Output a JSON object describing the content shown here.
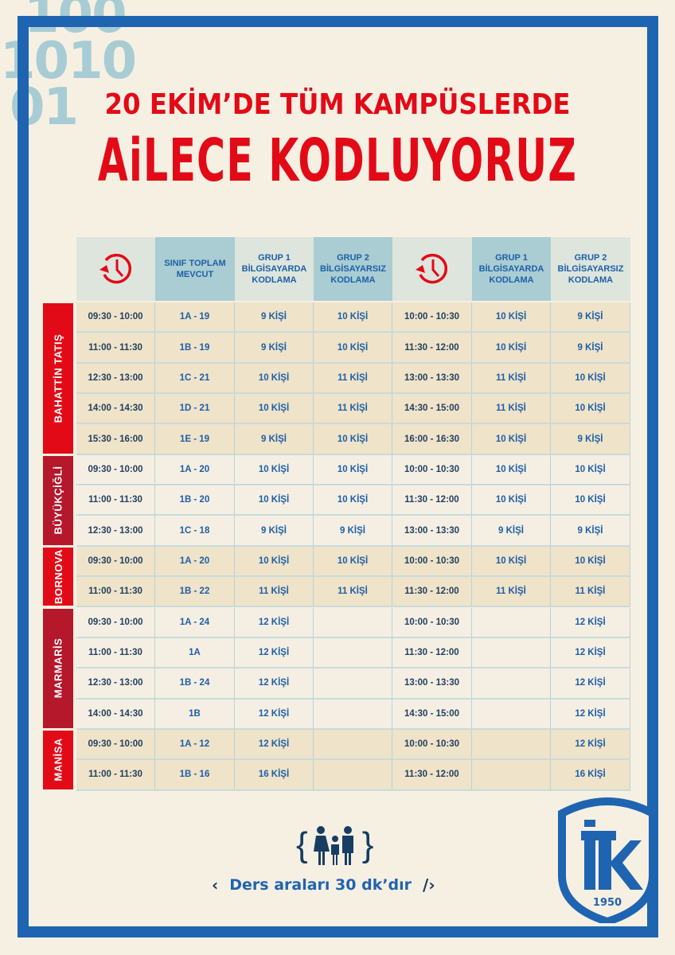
{
  "decor_binary": [
    "100",
    "1010",
    "01"
  ],
  "title_line1": "20 EKİM’DE TÜM KAMPÜSLERDE",
  "title_line2": "AiLECE  KODLUYORUZ",
  "colors": {
    "frame": "#1f64b0",
    "title": "#e30a17",
    "header_dark": "#a9cdd2",
    "header_light": "#dde5dd",
    "row_tan": "#efe3c9",
    "row_light": "#f5efe3",
    "text_blue": "#1d5fa8"
  },
  "headers": [
    "clock-icon",
    "SINIF TOPLAM MEVCUT",
    "GRUP 1 BİLGİSAYARDA KODLAMA",
    "GRUP 2 BİLGİSAYARSIZ KODLAMA",
    "clock-icon",
    "GRUP 1 BİLGİSAYARDA KODLAMA",
    "GRUP 2 BİLGİSAYARSIZ KODLAMA"
  ],
  "campuses": [
    {
      "name": "BAHATTİN TATIŞ",
      "rows": [
        [
          "09:30 - 10:00",
          "1A - 19",
          "9 KİŞİ",
          "10 KİŞİ",
          "10:00 - 10:30",
          "10 KİŞİ",
          "9 KİŞİ"
        ],
        [
          "11:00 - 11:30",
          "1B - 19",
          "9 KİŞİ",
          "10 KİŞİ",
          "11:30 - 12:00",
          "10 KİŞİ",
          "9 KİŞİ"
        ],
        [
          "12:30 - 13:00",
          "1C - 21",
          "10 KİŞİ",
          "11 KİŞİ",
          "13:00 - 13:30",
          "11 KİŞİ",
          "10 KİŞİ"
        ],
        [
          "14:00 - 14:30",
          "1D - 21",
          "10 KİŞİ",
          "11 KİŞİ",
          "14:30 - 15:00",
          "11 KİŞİ",
          "10 KİŞİ"
        ],
        [
          "15:30 - 16:00",
          "1E - 19",
          "9 KİŞİ",
          "10 KİŞİ",
          "16:00 - 16:30",
          "10 KİŞİ",
          "9 KİŞİ"
        ]
      ]
    },
    {
      "name": "BÜYÜKÇİĞLİ",
      "rows": [
        [
          "09:30 - 10:00",
          "1A - 20",
          "10 KİŞİ",
          "10 KİŞİ",
          "10:00 - 10:30",
          "10 KİŞİ",
          "10 KİŞİ"
        ],
        [
          "11:00 - 11:30",
          "1B - 20",
          "10 KİŞİ",
          "10 KİŞİ",
          "11:30 - 12:00",
          "10 KİŞİ",
          "10 KİŞİ"
        ],
        [
          "12:30 - 13:00",
          "1C - 18",
          "9 KİŞİ",
          "9 KİŞİ",
          "13:00 - 13:30",
          "9 KİŞİ",
          "9 KİŞİ"
        ]
      ]
    },
    {
      "name": "BORNOVA",
      "rows": [
        [
          "09:30 - 10:00",
          "1A - 20",
          "10 KİŞİ",
          "10 KİŞİ",
          "10:00 - 10:30",
          "10 KİŞİ",
          "10 KİŞİ"
        ],
        [
          "11:00 - 11:30",
          "1B - 22",
          "11 KİŞİ",
          "11 KİŞİ",
          "11:30 - 12:00",
          "11 KİŞİ",
          "11 KİŞİ"
        ]
      ]
    },
    {
      "name": "MARMARİS",
      "rows": [
        [
          "09:30 - 10:00",
          "1A - 24",
          "12 KİŞİ",
          "",
          "10:00 - 10:30",
          "",
          "12 KİŞİ"
        ],
        [
          "11:00 - 11:30",
          "1A",
          "12 KİŞİ",
          "",
          "11:30 - 12:00",
          "",
          "12 KİŞİ"
        ],
        [
          "12:30 - 13:00",
          "1B - 24",
          "12 KİŞİ",
          "",
          "13:00 - 13:30",
          "",
          "12 KİŞİ"
        ],
        [
          "14:00 - 14:30",
          "1B",
          "12 KİŞİ",
          "",
          "14:30 - 15:00",
          "",
          "12 KİŞİ"
        ]
      ]
    },
    {
      "name": "MANİSA",
      "rows": [
        [
          "09:30 - 10:00",
          "1A - 12",
          "12 KİŞİ",
          "",
          "10:00 - 10:30",
          "",
          "12 KİŞİ"
        ],
        [
          "11:00 - 11:30",
          "1B - 16",
          "16 KİŞİ",
          "",
          "11:30 - 12:00",
          "",
          "16 KİŞİ"
        ]
      ]
    }
  ],
  "footer": {
    "icon": "family-code-icon",
    "note": "Ders araları 30 dk’dır",
    "left_symbol": "‹",
    "right_symbol": "/›"
  },
  "logo": {
    "letters": "İTK",
    "year": "1950"
  }
}
